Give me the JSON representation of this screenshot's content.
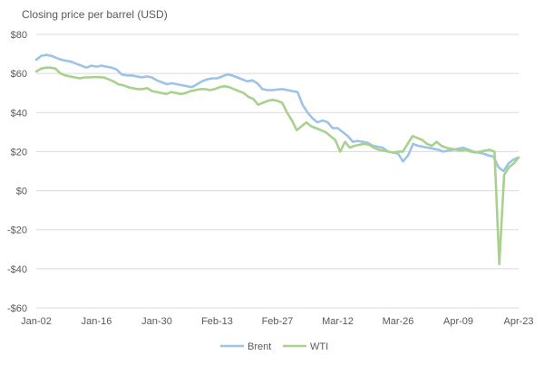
{
  "chart_data": {
    "type": "line",
    "title": "Closing price per barrel (USD)",
    "xlabel": "",
    "ylabel": "",
    "ylim": [
      -60,
      80
    ],
    "y_ticks": [
      -60,
      -40,
      -20,
      0,
      20,
      40,
      60,
      80
    ],
    "y_tick_labels": [
      "-$60",
      "-$40",
      "-$20",
      "$0",
      "$20",
      "$40",
      "$60",
      "$80"
    ],
    "x_start": "2020-01-02",
    "x_end": "2020-04-23",
    "x_ticks": [
      "2020-01-02",
      "2020-01-16",
      "2020-01-30",
      "2020-02-13",
      "2020-02-27",
      "2020-03-12",
      "2020-03-26",
      "2020-04-09",
      "2020-04-23"
    ],
    "x_tick_labels": [
      "Jan-02",
      "Jan-16",
      "Jan-30",
      "Feb-13",
      "Feb-27",
      "Mar-12",
      "Mar-26",
      "Apr-09",
      "Apr-23"
    ],
    "grid": true,
    "legend_position": "bottom",
    "colors": {
      "Brent": "#9dc3e6",
      "WTI": "#a9d18e",
      "grid": "#d9d9d9",
      "text": "#595959"
    },
    "series": [
      {
        "name": "Brent",
        "x": [
          "2020-01-02",
          "2020-01-03",
          "2020-01-06",
          "2020-01-07",
          "2020-01-08",
          "2020-01-09",
          "2020-01-10",
          "2020-01-13",
          "2020-01-14",
          "2020-01-15",
          "2020-01-16",
          "2020-01-17",
          "2020-01-21",
          "2020-01-22",
          "2020-01-23",
          "2020-01-24",
          "2020-01-27",
          "2020-01-28",
          "2020-01-29",
          "2020-01-30",
          "2020-01-31",
          "2020-02-03",
          "2020-02-04",
          "2020-02-05",
          "2020-02-06",
          "2020-02-07",
          "2020-02-10",
          "2020-02-11",
          "2020-02-12",
          "2020-02-13",
          "2020-02-14",
          "2020-02-18",
          "2020-02-19",
          "2020-02-20",
          "2020-02-21",
          "2020-02-24",
          "2020-02-25",
          "2020-02-26",
          "2020-02-27",
          "2020-02-28",
          "2020-03-02",
          "2020-03-03",
          "2020-03-04",
          "2020-03-05",
          "2020-03-06",
          "2020-03-09",
          "2020-03-10",
          "2020-03-11",
          "2020-03-12",
          "2020-03-13",
          "2020-03-16",
          "2020-03-17",
          "2020-03-18",
          "2020-03-19",
          "2020-03-20",
          "2020-03-23",
          "2020-03-24",
          "2020-03-25",
          "2020-03-26",
          "2020-03-27",
          "2020-03-30",
          "2020-03-31",
          "2020-04-01",
          "2020-04-02",
          "2020-04-03",
          "2020-04-06",
          "2020-04-07",
          "2020-04-08",
          "2020-04-09",
          "2020-04-13",
          "2020-04-14",
          "2020-04-15",
          "2020-04-16",
          "2020-04-17",
          "2020-04-20",
          "2020-04-21",
          "2020-04-22",
          "2020-04-23"
        ],
        "values": [
          66.3,
          68.6,
          68.9,
          68.3,
          65.4,
          65.4,
          64.9,
          64.2,
          64.5,
          64.0,
          64.6,
          64.9,
          64.6,
          63.2,
          62.0,
          60.7,
          59.3,
          59.5,
          59.8,
          58.3,
          58.2,
          54.5,
          54.0,
          55.3,
          55.0,
          54.5,
          53.3,
          54.0,
          55.8,
          56.3,
          57.3,
          57.8,
          59.1,
          59.3,
          58.5,
          56.3,
          54.9,
          53.4,
          52.2,
          50.5,
          51.9,
          51.9,
          51.1,
          50.0,
          45.3,
          34.4,
          37.2,
          35.8,
          33.2,
          33.9,
          30.1,
          28.7,
          24.9,
          28.5,
          26.9,
          27.0,
          27.2,
          27.4,
          26.3,
          24.9,
          22.8,
          22.7,
          24.7,
          29.9,
          34.1,
          33.0,
          31.9,
          32.8,
          31.5,
          31.7,
          29.6,
          27.7,
          27.8,
          28.1,
          25.6,
          19.3,
          20.4,
          21.3
        ],
        "display_values": [
          67,
          69,
          69.5,
          69,
          68,
          67,
          66.5,
          66,
          65,
          64,
          63,
          64,
          63.5,
          64,
          63.5,
          63,
          62,
          59.5,
          59,
          59,
          58.5,
          58,
          58.5,
          58,
          56.5,
          55.5,
          54.5,
          55,
          54.5,
          54,
          53.5,
          53,
          54.5,
          56,
          57,
          57.5,
          57.5,
          58.5,
          59.5,
          59,
          58,
          57,
          56,
          56.5,
          55,
          52,
          51.5,
          51.5,
          51.8,
          52,
          51.5,
          51,
          50.5,
          44,
          40,
          37,
          35,
          36,
          35,
          32,
          32,
          30,
          28,
          25,
          25.5,
          25,
          24.5,
          23,
          22.5,
          22,
          20,
          19.5,
          19,
          15,
          18,
          24,
          23,
          22.5,
          22,
          21.5,
          21,
          20,
          20.5,
          21,
          21.5,
          22,
          21,
          20,
          19.5,
          19,
          18,
          17.5,
          12,
          10,
          14,
          16,
          17
        ]
      },
      {
        "name": "WTI",
        "x": [
          "2020-01-02",
          "2020-04-23"
        ],
        "values": [
          61.2,
          16.5
        ],
        "display_values": [
          61,
          62.5,
          63,
          63,
          62.5,
          60,
          59,
          58.5,
          58,
          57.5,
          58,
          58,
          58.2,
          58.1,
          58,
          57,
          56,
          54.5,
          54,
          53,
          52.5,
          52,
          52,
          52.5,
          51,
          50.5,
          50,
          49.5,
          50.5,
          50,
          49.5,
          50,
          51,
          51.5,
          52,
          52,
          51.5,
          52,
          53,
          53.5,
          53,
          52,
          51,
          50,
          48,
          47,
          44,
          45,
          46,
          46.5,
          46,
          45,
          40,
          36,
          31,
          33,
          35,
          33,
          32,
          31,
          30,
          28,
          26,
          20,
          25,
          22,
          23,
          23.5,
          24,
          23.5,
          22,
          21,
          20.5,
          20,
          19.5,
          20,
          20,
          24,
          28,
          27,
          26,
          24,
          23,
          25,
          23,
          22,
          21.5,
          21,
          20.5,
          21,
          20,
          19.5,
          20,
          20.5,
          21,
          20,
          -37.6,
          8,
          12,
          14,
          17
        ]
      }
    ],
    "legend": [
      "Brent",
      "WTI"
    ]
  }
}
